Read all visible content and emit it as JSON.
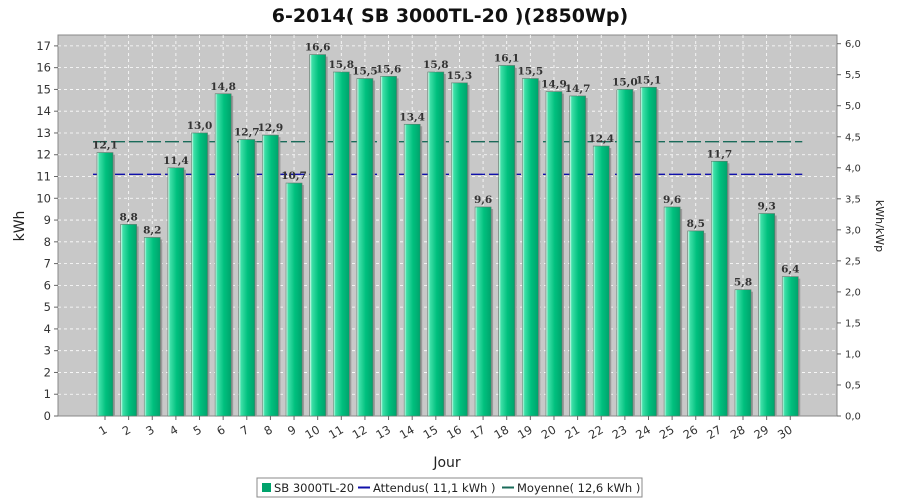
{
  "chart_data": {
    "type": "bar",
    "title": "6-2014( SB 3000TL-20 )(2850Wp)",
    "xlabel": "Jour",
    "ylabel": "kWh",
    "y2label": "kWh/kWp",
    "ylim": [
      0,
      17.5
    ],
    "y2lim": [
      0,
      6.14
    ],
    "yticks": [
      "0",
      "1",
      "2",
      "3",
      "4",
      "5",
      "6",
      "7",
      "8",
      "9",
      "10",
      "11",
      "12",
      "13",
      "14",
      "15",
      "16",
      "17"
    ],
    "y2ticks": [
      "0,0",
      "0,5",
      "1,0",
      "1,5",
      "2,0",
      "2,5",
      "3,0",
      "3,5",
      "4,0",
      "4,5",
      "5,0",
      "5,5",
      "6,0"
    ],
    "grid": true,
    "legend_position": "bottom",
    "categories": [
      "1",
      "2",
      "3",
      "4",
      "5",
      "6",
      "7",
      "8",
      "9",
      "10",
      "11",
      "12",
      "13",
      "14",
      "15",
      "16",
      "17",
      "18",
      "19",
      "20",
      "21",
      "22",
      "23",
      "24",
      "25",
      "26",
      "27",
      "28",
      "29",
      "30"
    ],
    "series": [
      {
        "name": "SB 3000TL-20",
        "color": "#00a36c",
        "values": [
          12.1,
          8.8,
          8.2,
          11.4,
          13.0,
          14.8,
          12.7,
          12.9,
          10.7,
          16.6,
          15.8,
          15.5,
          15.6,
          13.4,
          15.8,
          15.3,
          9.6,
          16.1,
          15.5,
          14.9,
          14.7,
          12.4,
          15.0,
          15.1,
          9.6,
          8.5,
          11.7,
          5.8,
          9.3,
          6.4
        ],
        "labels": [
          "12,1",
          "8,8",
          "8,2",
          "11,4",
          "13,0",
          "14,8",
          "12,7",
          "12,9",
          "10,7",
          "16,6",
          "15,8",
          "15,5",
          "15,6",
          "13,4",
          "15,8",
          "15,3",
          "9,6",
          "16,1",
          "15,5",
          "14,9",
          "14,7",
          "12,4",
          "15,0",
          "15,1",
          "9,6",
          "8,5",
          "11,7",
          "5,8",
          "9,3",
          "6,4"
        ]
      }
    ],
    "reference_lines": [
      {
        "name": "Attendus( 11,1 kWh )",
        "value": 11.1,
        "color": "#1010aa"
      },
      {
        "name": "Moyenne( 12,6 kWh )",
        "value": 12.6,
        "color": "#1a6b5a"
      }
    ],
    "colors": {
      "plot_background": "#c8c8c8",
      "bar": "#00a36c",
      "attendus": "#1010aa",
      "moyenne": "#1a6b5a"
    }
  }
}
